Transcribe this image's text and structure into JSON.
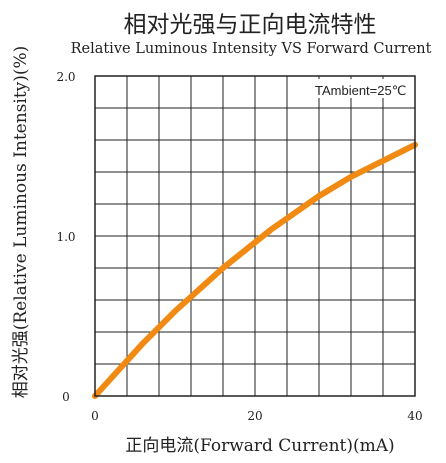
{
  "chart_data": {
    "type": "line",
    "title": "相对光强与正向电流特性",
    "subtitle": "Relative Luminous Intensity VS Forward Current",
    "xlabel": "正向电流(Forward Current)(mA)",
    "ylabel": "相对光强(Relative Luminous Intensity)(%)",
    "annotation": "TAmbient=25℃",
    "xlim": [
      0,
      40
    ],
    "ylim": [
      0,
      2.0
    ],
    "x_ticks": [
      "0",
      "20",
      "40"
    ],
    "y_ticks": [
      "0",
      "1.0",
      "2.0"
    ],
    "grid": true,
    "series": [
      {
        "color": "#f08a12",
        "x": [
          0,
          2,
          4,
          6,
          8,
          10,
          12,
          14,
          16,
          18,
          20,
          22,
          24,
          26,
          28,
          30,
          32,
          34,
          36,
          38,
          40
        ],
        "y": [
          0,
          0.11,
          0.22,
          0.33,
          0.43,
          0.53,
          0.62,
          0.71,
          0.8,
          0.88,
          0.96,
          1.04,
          1.11,
          1.18,
          1.25,
          1.31,
          1.37,
          1.42,
          1.47,
          1.52,
          1.57
        ]
      }
    ]
  }
}
